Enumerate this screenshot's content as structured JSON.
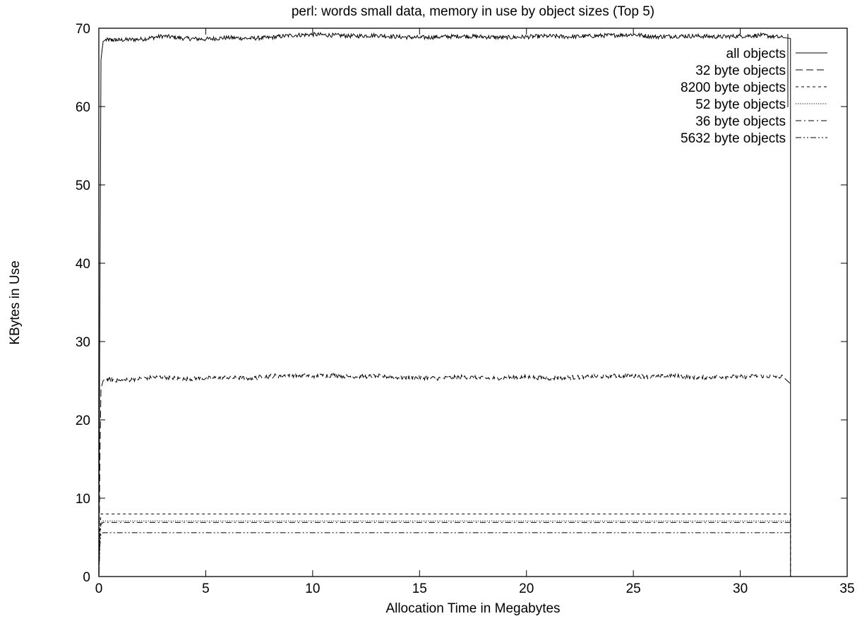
{
  "chart_data": {
    "type": "line",
    "title": "perl: words small data, memory in use by object sizes (Top 5)",
    "xlabel": "Allocation Time in Megabytes",
    "ylabel": "KBytes in Use",
    "xlim": [
      0,
      35
    ],
    "ylim": [
      0,
      70
    ],
    "xticks": [
      0,
      5,
      10,
      15,
      20,
      25,
      30,
      35
    ],
    "yticks": [
      0,
      10,
      20,
      30,
      40,
      50,
      60,
      70
    ],
    "grid": false,
    "legend_position": "top-right",
    "series": [
      {
        "name": "all objects",
        "dash": "solid",
        "x": [
          0,
          0.05,
          0.1,
          0.2,
          0.3,
          1,
          2,
          3,
          4,
          5,
          6,
          7,
          8,
          9,
          10,
          11,
          12,
          13,
          14,
          15,
          16,
          17,
          18,
          19,
          20,
          21,
          22,
          23,
          24,
          25,
          26,
          27,
          28,
          29,
          30,
          31,
          32,
          32.35,
          32.35
        ],
        "y": [
          0,
          35,
          66,
          68.3,
          68.5,
          68.5,
          68.6,
          69,
          68.7,
          68.6,
          68.8,
          68.7,
          68.8,
          69.1,
          69.2,
          69.1,
          69,
          69.1,
          68.9,
          68.8,
          68.9,
          69,
          68.9,
          68.8,
          68.9,
          69,
          68.9,
          69,
          69.1,
          69.2,
          68.9,
          69,
          69,
          68.9,
          69,
          69.1,
          68.8,
          68.7,
          0
        ]
      },
      {
        "name": "32 byte objects",
        "dash": "long-dash",
        "x": [
          0,
          0.05,
          0.1,
          0.2,
          0.3,
          1,
          2,
          3,
          4,
          5,
          6,
          7,
          8,
          9,
          10,
          11,
          12,
          13,
          14,
          15,
          16,
          17,
          18,
          19,
          20,
          21,
          22,
          23,
          24,
          25,
          26,
          27,
          28,
          29,
          30,
          31,
          32,
          32.35
        ],
        "y": [
          0,
          15,
          24,
          25,
          25.2,
          25,
          25.3,
          25.5,
          25.2,
          25.3,
          25.4,
          25.3,
          25.6,
          25.7,
          25.6,
          25.7,
          25.5,
          25.6,
          25.4,
          25.4,
          25.3,
          25.5,
          25.3,
          25.4,
          25.5,
          25.3,
          25.4,
          25.5,
          25.6,
          25.6,
          25.5,
          25.6,
          25.4,
          25.5,
          25.5,
          25.6,
          25.5,
          24.6
        ]
      },
      {
        "name": "8200 byte objects",
        "dash": "short-dash",
        "x": [
          0,
          0.05,
          0.1,
          0.2,
          32.35,
          32.35
        ],
        "y": [
          0,
          6,
          8,
          8,
          8,
          0
        ]
      },
      {
        "name": "52 byte objects",
        "dash": "dotted",
        "x": [
          0,
          0.05,
          0.1,
          0.2,
          32.35
        ],
        "y": [
          0,
          5,
          6.9,
          7.1,
          7.1
        ]
      },
      {
        "name": "36 byte objects",
        "dash": "dash-dot",
        "x": [
          0,
          0.05,
          0.1,
          0.2,
          32.35
        ],
        "y": [
          0,
          5,
          6.7,
          6.9,
          6.9
        ]
      },
      {
        "name": "5632 byte objects",
        "dash": "dash-dot-dot",
        "x": [
          0,
          0.05,
          0.1,
          0.2,
          32.35
        ],
        "y": [
          0,
          4,
          5.5,
          5.6,
          5.6
        ]
      }
    ]
  }
}
